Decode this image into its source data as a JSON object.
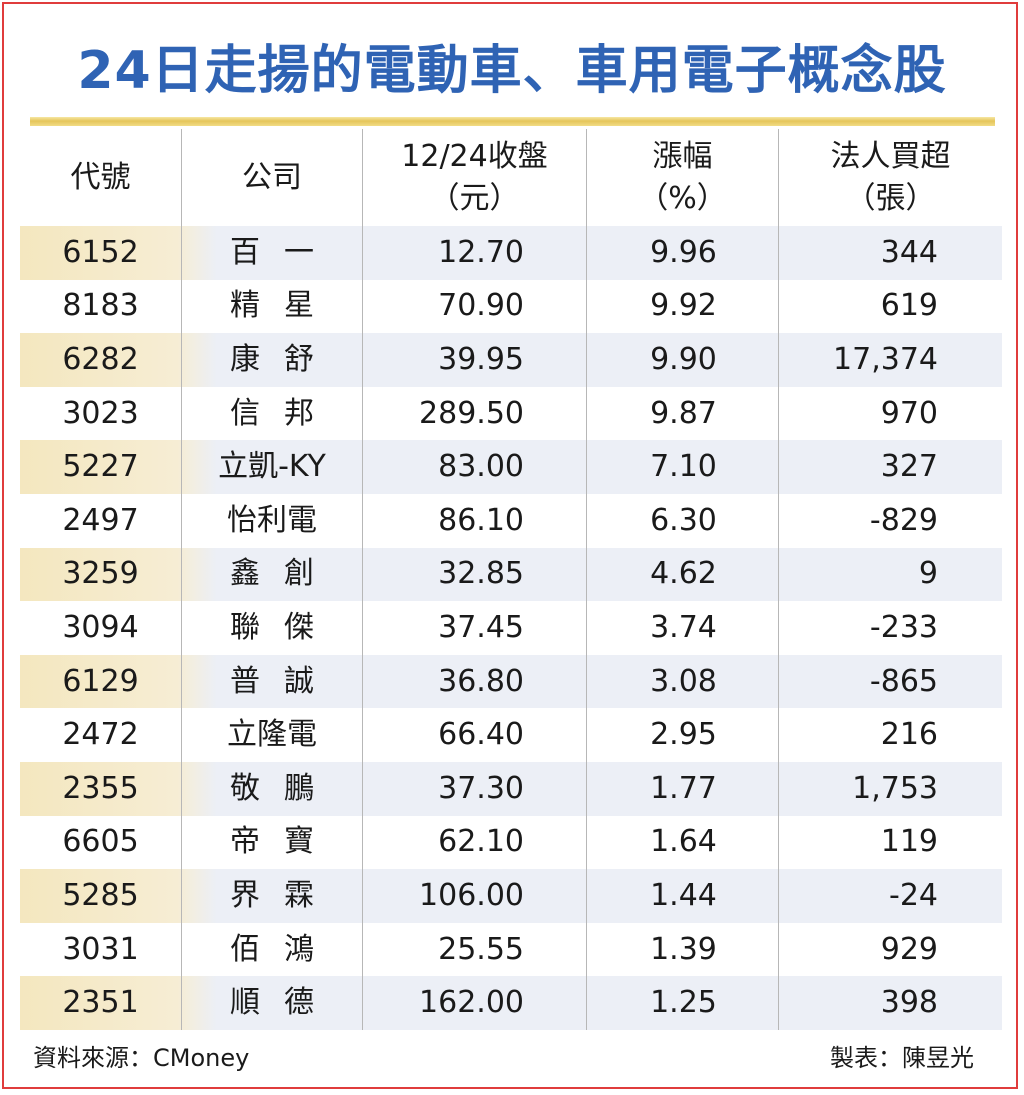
{
  "title": "24日走揚的電動車、車用電子概念股",
  "headers": {
    "code": "代號",
    "company": "公司",
    "close_line1": "12/24收盤",
    "close_line2": "（元）",
    "change_line1": "漲幅",
    "change_line2": "（%）",
    "inst_line1": "法人買超",
    "inst_line2": "（張）"
  },
  "rows": [
    {
      "code": "6152",
      "company": "百一",
      "close": "12.70",
      "change": "9.96",
      "inst": "344"
    },
    {
      "code": "8183",
      "company": "精星",
      "close": "70.90",
      "change": "9.92",
      "inst": "619"
    },
    {
      "code": "6282",
      "company": "康舒",
      "close": "39.95",
      "change": "9.90",
      "inst": "17,374"
    },
    {
      "code": "3023",
      "company": "信邦",
      "close": "289.50",
      "change": "9.87",
      "inst": "970"
    },
    {
      "code": "5227",
      "company": "立凱-KY",
      "close": "83.00",
      "change": "7.10",
      "inst": "327"
    },
    {
      "code": "2497",
      "company": "怡利電",
      "close": "86.10",
      "change": "6.30",
      "inst": "-829"
    },
    {
      "code": "3259",
      "company": "鑫創",
      "close": "32.85",
      "change": "4.62",
      "inst": "9"
    },
    {
      "code": "3094",
      "company": "聯傑",
      "close": "37.45",
      "change": "3.74",
      "inst": "-233"
    },
    {
      "code": "6129",
      "company": "普誠",
      "close": "36.80",
      "change": "3.08",
      "inst": "-865"
    },
    {
      "code": "2472",
      "company": "立隆電",
      "close": "66.40",
      "change": "2.95",
      "inst": "216"
    },
    {
      "code": "2355",
      "company": "敬鵬",
      "close": "37.30",
      "change": "1.77",
      "inst": "1,753"
    },
    {
      "code": "6605",
      "company": "帝寶",
      "close": "62.10",
      "change": "1.64",
      "inst": "119"
    },
    {
      "code": "5285",
      "company": "界霖",
      "close": "106.00",
      "change": "1.44",
      "inst": "-24"
    },
    {
      "code": "3031",
      "company": "佰鴻",
      "close": "25.55",
      "change": "1.39",
      "inst": "929"
    },
    {
      "code": "2351",
      "company": "順德",
      "close": "162.00",
      "change": "1.25",
      "inst": "398"
    }
  ],
  "footer": {
    "source": "資料來源：CMoney",
    "author": "製表：陳昱光"
  },
  "colors": {
    "title": "#2f63b4",
    "frame": "#e03c3c",
    "highlight_row": "#eceff6",
    "highlight_code_cell": "#f4e7bf"
  }
}
